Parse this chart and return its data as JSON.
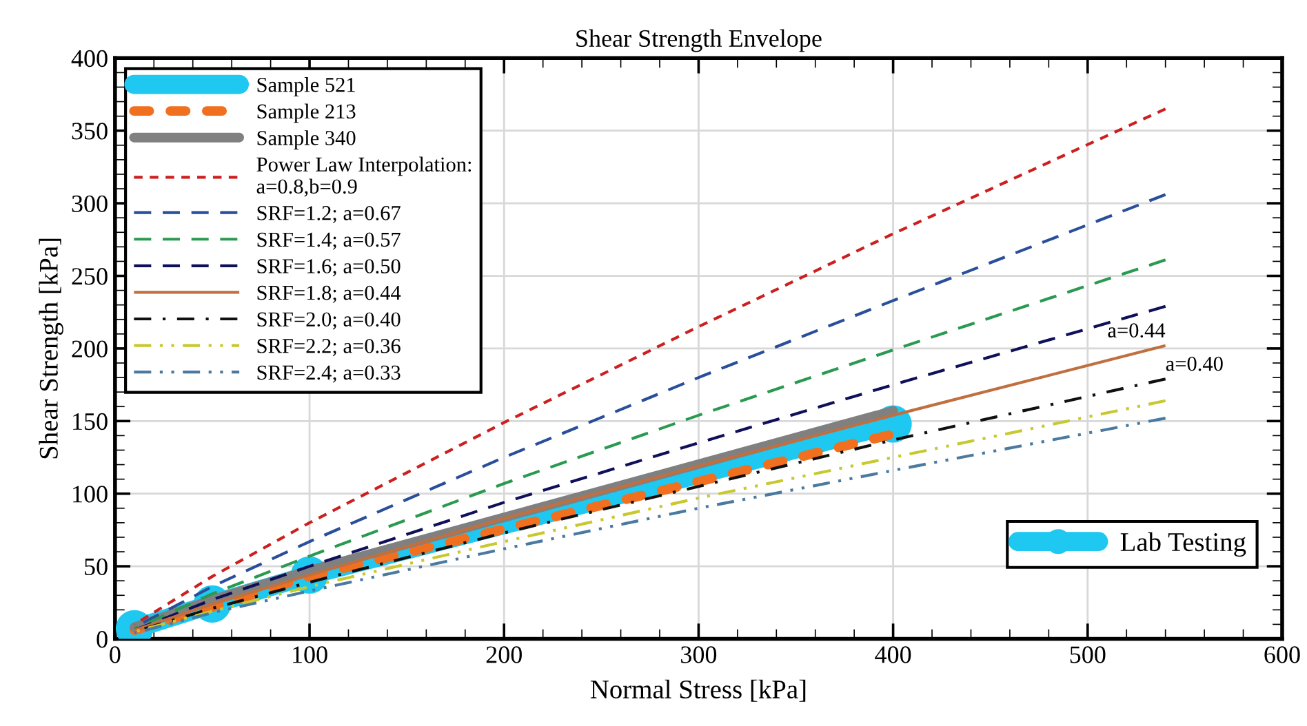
{
  "chart_data": {
    "type": "line",
    "title": "Shear Strength Envelope",
    "xlabel": "Normal Stress [kPa]",
    "ylabel": "Shear Strength [kPa]",
    "xlim": [
      0,
      600
    ],
    "ylim": [
      0,
      400
    ],
    "xticks": [
      0,
      100,
      200,
      300,
      400,
      500,
      600
    ],
    "yticks": [
      0,
      50,
      100,
      150,
      200,
      250,
      300,
      350,
      400
    ],
    "grid": true,
    "legend": "top left",
    "series": [
      {
        "name": "Sample 521",
        "color": "#1ec8f0",
        "line_style": "solid",
        "x": [
          10,
          50,
          100,
          400
        ],
        "values": [
          7,
          24,
          44,
          148
        ]
      },
      {
        "name": "Sample 213",
        "color": "#f07020",
        "line_style": "dashed",
        "x": [
          10,
          50,
          100,
          400
        ],
        "values": [
          6,
          22,
          43,
          141
        ]
      },
      {
        "name": "Sample 340",
        "color": "#808080",
        "line_style": "solid",
        "x": [
          10,
          50,
          100,
          400
        ],
        "values": [
          8,
          27,
          47,
          157
        ]
      },
      {
        "name": "Power Law Interpolation:\na=0.8,b=0.9",
        "color": "#cc2020",
        "line_style": "dotted",
        "x": [
          10,
          50,
          100,
          200,
          300,
          400,
          540
        ],
        "values": [
          10,
          43,
          80,
          149,
          215,
          279,
          365
        ]
      },
      {
        "name": "SRF=1.2; a=0.67",
        "color": "#2a4f9a",
        "line_style": "dashed",
        "x": [
          10,
          50,
          100,
          200,
          300,
          400,
          540
        ],
        "values": [
          8,
          36,
          67,
          125,
          180,
          233,
          306
        ]
      },
      {
        "name": "SRF=1.4; a=0.57",
        "color": "#2a9a50",
        "line_style": "dashed",
        "x": [
          10,
          50,
          100,
          200,
          300,
          400,
          540
        ],
        "values": [
          7,
          31,
          57,
          107,
          154,
          199,
          261
        ]
      },
      {
        "name": "SRF=1.6; a=0.50",
        "color": "#10105a",
        "line_style": "dashed",
        "x": [
          10,
          50,
          100,
          200,
          300,
          400,
          540
        ],
        "values": [
          6,
          27,
          50,
          94,
          135,
          175,
          229
        ]
      },
      {
        "name": "SRF=1.8; a=0.44",
        "color": "#c07040",
        "line_style": "solid",
        "x": [
          10,
          50,
          100,
          200,
          300,
          400,
          540
        ],
        "values": [
          6,
          24,
          44,
          83,
          119,
          154,
          202
        ]
      },
      {
        "name": "SRF=2.0; a=0.40",
        "color": "#101010",
        "line_style": "dashdot",
        "x": [
          10,
          50,
          100,
          200,
          300,
          400,
          540
        ],
        "values": [
          5,
          21,
          39,
          73,
          105,
          137,
          179
        ]
      },
      {
        "name": "SRF=2.2; a=0.36",
        "color": "#c8c830",
        "line_style": "dashdotdot",
        "x": [
          10,
          50,
          100,
          200,
          300,
          400,
          540
        ],
        "values": [
          5,
          19,
          36,
          67,
          97,
          125,
          164
        ]
      },
      {
        "name": "SRF=2.4; a=0.33",
        "color": "#4a7aa0",
        "line_style": "dashdotdot",
        "x": [
          10,
          50,
          100,
          200,
          300,
          400,
          540
        ],
        "values": [
          4,
          18,
          33,
          62,
          90,
          116,
          152
        ]
      },
      {
        "name": "Lab Testing",
        "type": "scatter",
        "marker": "circle",
        "color": "#1ec8f0",
        "x": [
          10,
          50,
          100,
          400
        ],
        "values": [
          7,
          24,
          44,
          148
        ]
      }
    ],
    "annotations": [
      {
        "text": "a=0.44",
        "x": 540,
        "y": 202
      },
      {
        "text": "a=0.40",
        "x": 540,
        "y": 179
      }
    ]
  }
}
